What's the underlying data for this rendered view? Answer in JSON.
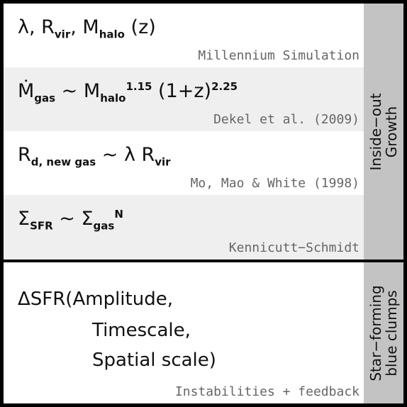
{
  "sections": [
    {
      "rows": [
        {
          "formula": [
            {
              "text": "λ, R"
            },
            {
              "sub": "vir"
            },
            {
              "text": ", M"
            },
            {
              "sub": "halo"
            },
            {
              "text": " (z)"
            }
          ],
          "reference": "Millennium Simulation"
        },
        {
          "formula": [
            {
              "text": "Ṁ"
            },
            {
              "sub": "gas"
            },
            {
              "text": " ~ M"
            },
            {
              "sub": "halo"
            },
            {
              "sup": "1.15"
            },
            {
              "text": " (1+z)"
            },
            {
              "sup": "2.25"
            }
          ],
          "reference": "Dekel et al. (2009)"
        },
        {
          "formula": [
            {
              "text": "R"
            },
            {
              "sub": "d, new gas"
            },
            {
              "text": " ~ λ R"
            },
            {
              "sub": "vir"
            }
          ],
          "reference": "Mo, Mao & White (1998)"
        },
        {
          "formula": [
            {
              "text": "Σ"
            },
            {
              "sub": "SFR"
            },
            {
              "text": " ~ Σ"
            },
            {
              "sub": "gas"
            },
            {
              "sup": "N"
            }
          ],
          "reference": "Kennicutt−Schmidt"
        }
      ],
      "label": [
        "Inside−out",
        "Growth"
      ]
    },
    {
      "lines": [
        "ΔSFR(Amplitude,",
        "Timescale,",
        "Spatial scale)"
      ],
      "reference": "Instabilities + feedback",
      "label": [
        "Star−forming",
        "blue clumps"
      ]
    }
  ]
}
